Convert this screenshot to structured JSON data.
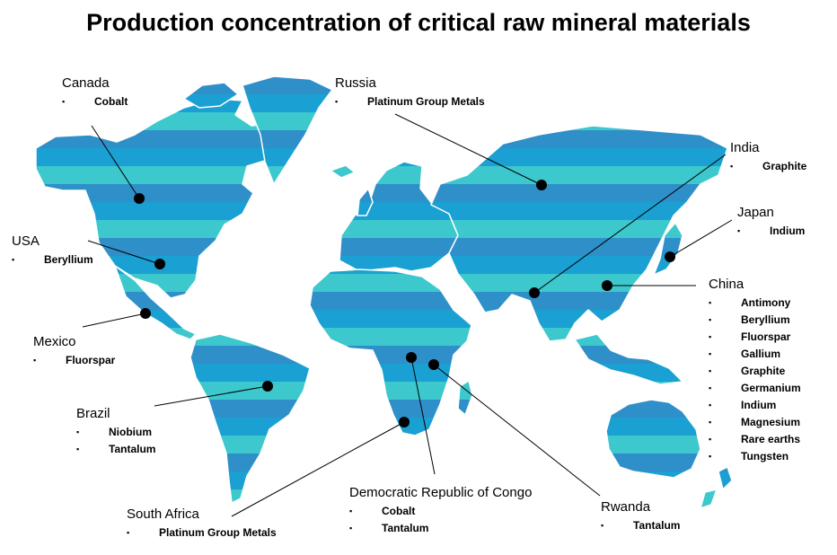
{
  "title": "Production concentration of critical raw mineral materials",
  "colors": {
    "ocean": "#ffffff",
    "land": "#1a9fcf",
    "band_light": "#3cc8cc",
    "band_dark": "#2f8fc8",
    "border": "#ffffff",
    "marker": "#000000"
  },
  "countries": [
    {
      "id": "canada",
      "name": "Canada",
      "minerals": [
        "Cobalt"
      ]
    },
    {
      "id": "russia",
      "name": "Russia",
      "minerals": [
        "Platinum Group Metals"
      ]
    },
    {
      "id": "india",
      "name": "India",
      "minerals": [
        "Graphite"
      ]
    },
    {
      "id": "japan",
      "name": "Japan",
      "minerals": [
        "Indium"
      ]
    },
    {
      "id": "usa",
      "name": "USA",
      "minerals": [
        "Beryllium"
      ]
    },
    {
      "id": "china",
      "name": "China",
      "minerals": [
        "Antimony",
        "Beryllium",
        "Fluorspar",
        "Gallium",
        "Graphite",
        "Germanium",
        "Indium",
        "Magnesium",
        "Rare earths",
        "Tungsten"
      ]
    },
    {
      "id": "mexico",
      "name": "Mexico",
      "minerals": [
        "Fluorspar"
      ]
    },
    {
      "id": "brazil",
      "name": "Brazil",
      "minerals": [
        "Niobium",
        "Tantalum"
      ]
    },
    {
      "id": "drc",
      "name": "Democratic Republic of Congo",
      "minerals": [
        "Cobalt",
        "Tantalum"
      ]
    },
    {
      "id": "south-africa",
      "name": "South Africa",
      "minerals": [
        "Platinum Group Metals"
      ]
    },
    {
      "id": "rwanda",
      "name": "Rwanda",
      "minerals": [
        "Tantalum"
      ]
    }
  ]
}
